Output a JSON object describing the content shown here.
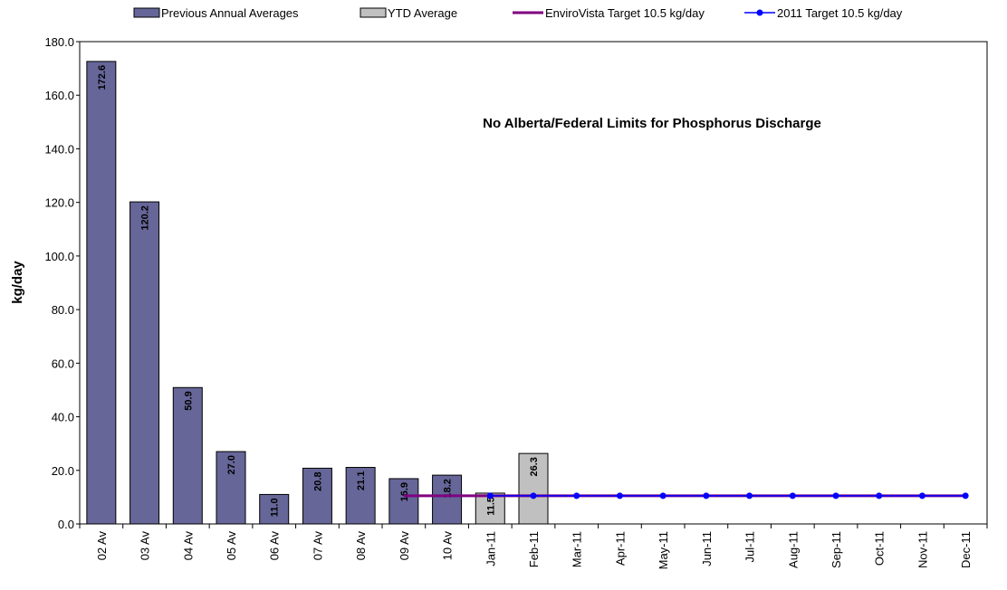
{
  "chart_data": {
    "type": "bar",
    "annotation": "No Alberta/Federal Limits for Phosphorus Discharge",
    "ylabel": "kg/day",
    "categories": [
      "02 Av",
      "03 Av",
      "04 Av",
      "05 Av",
      "06 Av",
      "07 Av",
      "08 Av",
      "09 Av",
      "10 Av",
      "Jan-11",
      "Feb-11",
      "Mar-11",
      "Apr-11",
      "May-11",
      "Jun-11",
      "Jul-11",
      "Aug-11",
      "Sep-11",
      "Oct-11",
      "Nov-11",
      "Dec-11"
    ],
    "series": [
      {
        "name": "Previous Annual Averages",
        "type": "bar",
        "color": "#666699",
        "values": [
          172.6,
          120.2,
          50.9,
          27.0,
          11.0,
          20.8,
          21.1,
          16.9,
          18.2,
          null,
          null,
          null,
          null,
          null,
          null,
          null,
          null,
          null,
          null,
          null,
          null
        ],
        "value_labels": [
          "172.6",
          "120.2",
          "50.9",
          "27.0",
          "11.0",
          "20.8",
          "21.1",
          "16.9",
          "18.2",
          null,
          null,
          null,
          null,
          null,
          null,
          null,
          null,
          null,
          null,
          null,
          null
        ]
      },
      {
        "name": "YTD Average",
        "type": "bar",
        "color": "#c0c0c0",
        "values": [
          null,
          null,
          null,
          null,
          null,
          null,
          null,
          null,
          null,
          11.5,
          26.3,
          null,
          null,
          null,
          null,
          null,
          null,
          null,
          null,
          null,
          null
        ],
        "value_labels": [
          null,
          null,
          null,
          null,
          null,
          null,
          null,
          null,
          null,
          "11.5",
          "26.3",
          null,
          null,
          null,
          null,
          null,
          null,
          null,
          null,
          null,
          null
        ]
      },
      {
        "name": "EnviroVista Target 10.5 kg/day",
        "type": "line",
        "color": "#800080",
        "values": [
          null,
          null,
          null,
          null,
          null,
          null,
          null,
          10.5,
          10.5,
          10.5,
          10.5,
          10.5,
          10.5,
          10.5,
          10.5,
          10.5,
          10.5,
          10.5,
          10.5,
          10.5,
          10.5
        ]
      },
      {
        "name": "2011 Target 10.5 kg/day",
        "type": "line",
        "color": "#0000ff",
        "marker": "circle",
        "values": [
          null,
          null,
          null,
          null,
          null,
          null,
          null,
          null,
          null,
          10.5,
          10.5,
          10.5,
          10.5,
          10.5,
          10.5,
          10.5,
          10.5,
          10.5,
          10.5,
          10.5,
          10.5
        ]
      }
    ],
    "ylim": [
      0,
      180
    ],
    "yticks": [
      {
        "value": 0,
        "label": "0.0"
      },
      {
        "value": 20,
        "label": "20.0"
      },
      {
        "value": 40,
        "label": "40.0"
      },
      {
        "value": 60,
        "label": "60.0"
      },
      {
        "value": 80,
        "label": "80.0"
      },
      {
        "value": 100,
        "label": "100.0"
      },
      {
        "value": 120,
        "label": "120.0"
      },
      {
        "value": 140,
        "label": "140.0"
      },
      {
        "value": 160,
        "label": "160.0"
      },
      {
        "value": 180,
        "label": "180.0"
      }
    ],
    "grid": false,
    "legend": "top"
  }
}
